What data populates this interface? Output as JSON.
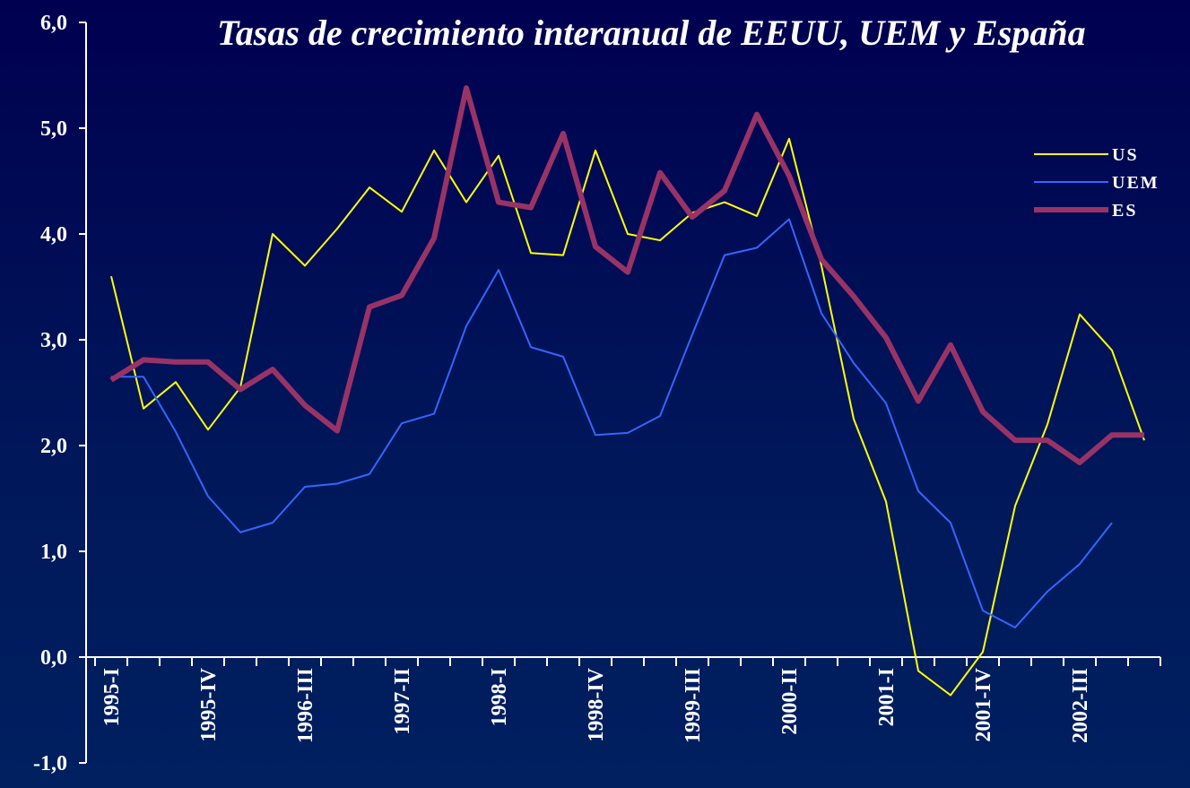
{
  "chart_data": {
    "type": "line",
    "title": "Tasas de crecimiento interanual de EEUU, UEM y España",
    "categories": [
      "1995-I",
      null,
      null,
      "1995-IV",
      null,
      null,
      "1996-III",
      null,
      null,
      "1997-II",
      null,
      null,
      "1998-I",
      null,
      null,
      "1998-IV",
      null,
      null,
      "1999-III",
      null,
      null,
      "2000-II",
      null,
      null,
      "2001-I",
      null,
      null,
      "2001-IV",
      null,
      null,
      "2002-III",
      null,
      null
    ],
    "series": [
      {
        "name": "US",
        "color": "#ffff00",
        "width": 2,
        "values": [
          3.6,
          2.35,
          2.6,
          2.15,
          2.55,
          4.0,
          3.7,
          4.05,
          4.44,
          4.21,
          4.79,
          4.3,
          4.74,
          3.82,
          3.8,
          4.79,
          4.0,
          3.94,
          4.2,
          4.3,
          4.17,
          4.9,
          3.7,
          2.25,
          1.47,
          -0.13,
          -0.36,
          0.05,
          1.43,
          2.2,
          3.24,
          2.9,
          2.05
        ]
      },
      {
        "name": "UEM",
        "color": "#3366ff",
        "width": 2,
        "values": [
          2.65,
          2.65,
          2.13,
          1.52,
          1.18,
          1.27,
          1.61,
          1.64,
          1.73,
          2.21,
          2.3,
          3.13,
          3.66,
          2.93,
          2.84,
          2.1,
          2.12,
          2.28,
          3.05,
          3.8,
          3.87,
          4.14,
          3.25,
          2.78,
          2.4,
          1.57,
          1.27,
          0.44,
          0.28,
          0.62,
          0.88,
          1.27,
          null
        ]
      },
      {
        "name": "ES",
        "color": "#993366",
        "width": 6,
        "values": [
          2.62,
          2.81,
          2.79,
          2.79,
          2.53,
          2.72,
          2.38,
          2.14,
          3.31,
          3.42,
          3.96,
          5.38,
          4.3,
          4.25,
          4.95,
          3.88,
          3.64,
          4.58,
          4.16,
          4.41,
          5.13,
          4.55,
          3.76,
          3.41,
          3.02,
          2.42,
          2.95,
          2.32,
          2.05,
          2.05,
          1.84,
          2.1,
          2.1
        ]
      }
    ],
    "ylim": [
      -1,
      6
    ],
    "yticks": [
      {
        "value": -1,
        "label": "-1,0"
      },
      {
        "value": 0,
        "label": "0,0"
      },
      {
        "value": 1,
        "label": "1,0"
      },
      {
        "value": 2,
        "label": "2,0"
      },
      {
        "value": 3,
        "label": "3,0"
      },
      {
        "value": 4,
        "label": "4,0"
      },
      {
        "value": 5,
        "label": "5,0"
      },
      {
        "value": 6,
        "label": "6,0"
      }
    ],
    "legend": "upper-right",
    "grid": false
  }
}
